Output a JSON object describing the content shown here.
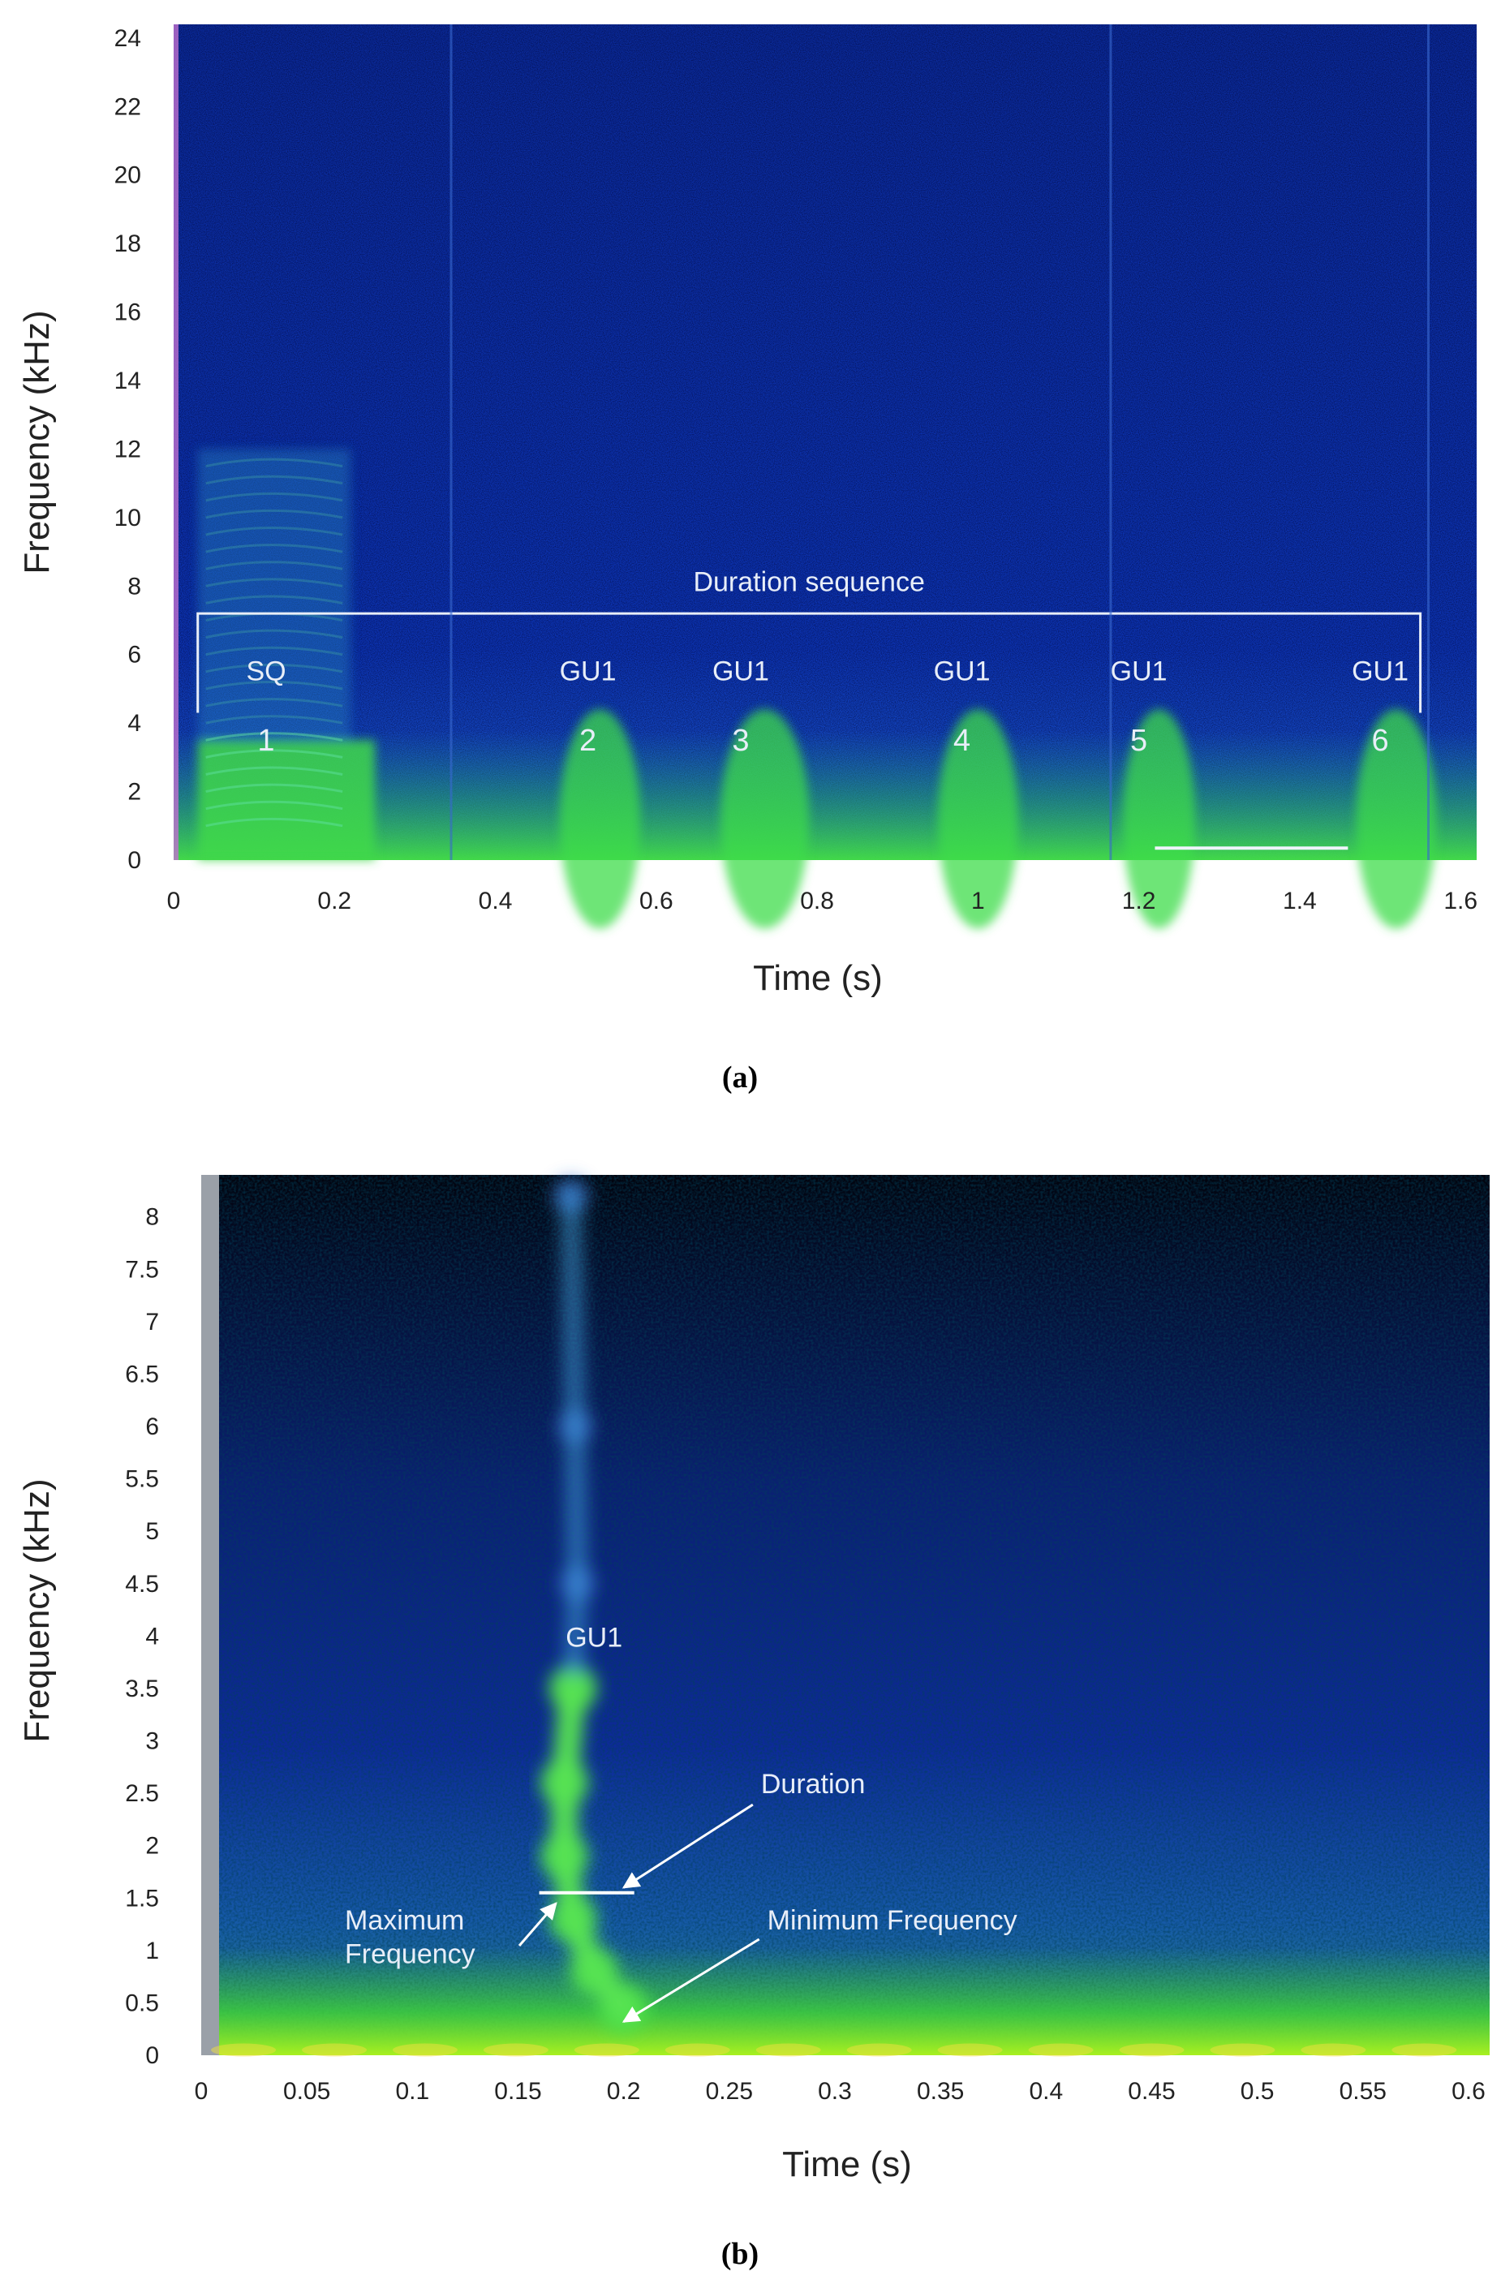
{
  "chart_data": [
    {
      "type": "heatmap",
      "panel_label": "(a)",
      "xlabel": "Time (s)",
      "ylabel": "Frequency (kHz)",
      "xlim": [
        0,
        1.62
      ],
      "ylim": [
        0,
        24.4
      ],
      "x_ticks": [
        "0",
        "0.2",
        "0.4",
        "0.6",
        "0.8",
        "1",
        "1.2",
        "1.4",
        "1.6"
      ],
      "x_tick_values": [
        0,
        0.2,
        0.4,
        0.6,
        0.8,
        1.0,
        1.2,
        1.4,
        1.6
      ],
      "y_ticks": [
        "0",
        "2",
        "4",
        "6",
        "8",
        "10",
        "12",
        "14",
        "16",
        "18",
        "20",
        "22",
        "24"
      ],
      "y_tick_values": [
        0,
        2,
        4,
        6,
        8,
        10,
        12,
        14,
        16,
        18,
        20,
        22,
        24
      ],
      "bracket_label": "Duration sequence",
      "bracket_range": [
        0.03,
        1.55
      ],
      "bracket_freq": 7.2,
      "scale_bar": {
        "from": 1.22,
        "to": 1.46,
        "freq": 0.35
      },
      "calls": [
        {
          "name": "SQ",
          "number": "1",
          "time": 0.115,
          "start": 0.03,
          "end": 0.22
        },
        {
          "name": "GU1",
          "number": "2",
          "time": 0.515,
          "start": 0.49,
          "end": 0.57
        },
        {
          "name": "GU1",
          "number": "3",
          "time": 0.705,
          "start": 0.69,
          "end": 0.78
        },
        {
          "name": "GU1",
          "number": "4",
          "time": 0.98,
          "start": 0.96,
          "end": 1.04
        },
        {
          "name": "GU1",
          "number": "5",
          "time": 1.2,
          "start": 1.19,
          "end": 1.26
        },
        {
          "name": "GU1",
          "number": "6",
          "time": 1.5,
          "start": 1.48,
          "end": 1.56
        }
      ]
    },
    {
      "type": "heatmap",
      "panel_label": "(b)",
      "xlabel": "Time (s)",
      "ylabel": "Frequency (kHz)",
      "xlim": [
        0,
        0.61
      ],
      "ylim": [
        0,
        8.4
      ],
      "x_ticks": [
        "0",
        "0.05",
        "0.1",
        "0.15",
        "0.2",
        "0.25",
        "0.3",
        "0.35",
        "0.4",
        "0.45",
        "0.5",
        "0.55",
        "0.6"
      ],
      "x_tick_values": [
        0,
        0.05,
        0.1,
        0.15,
        0.2,
        0.25,
        0.3,
        0.35,
        0.4,
        0.45,
        0.5,
        0.55,
        0.6
      ],
      "y_ticks": [
        "0",
        "0.5",
        "1",
        "1.5",
        "2",
        "2.5",
        "3",
        "3.5",
        "4",
        "4.5",
        "5",
        "5.5",
        "6",
        "6.5",
        "7",
        "7.5",
        "8"
      ],
      "y_tick_values": [
        0,
        0.5,
        1,
        1.5,
        2,
        2.5,
        3,
        3.5,
        4,
        4.5,
        5,
        5.5,
        6,
        6.5,
        7,
        7.5,
        8
      ],
      "call_label": "GU1",
      "call_contour": [
        [
          0.175,
          8.2
        ],
        [
          0.177,
          6.0
        ],
        [
          0.178,
          4.5
        ],
        [
          0.176,
          3.5
        ],
        [
          0.172,
          2.6
        ],
        [
          0.172,
          1.9
        ],
        [
          0.176,
          1.3
        ],
        [
          0.186,
          0.8
        ],
        [
          0.2,
          0.45
        ]
      ],
      "duration_line": {
        "from": 0.16,
        "to": 0.205,
        "freq": 1.55
      },
      "annotations": [
        {
          "text": "Duration",
          "text_x": 0.265,
          "text_y": 2.5,
          "arrow_x": 0.2,
          "arrow_y": 1.6
        },
        {
          "text": "Maximum",
          "text_x": 0.068,
          "text_y": 1.2,
          "arrow_x": 0.168,
          "arrow_y": 1.45
        },
        {
          "text": "Frequency",
          "text_x": 0.068,
          "text_y": 0.88,
          "arrow_x": null,
          "arrow_y": null
        },
        {
          "text": "Minimum Frequency",
          "text_x": 0.268,
          "text_y": 1.2,
          "arrow_x": 0.2,
          "arrow_y": 0.32
        }
      ]
    }
  ]
}
